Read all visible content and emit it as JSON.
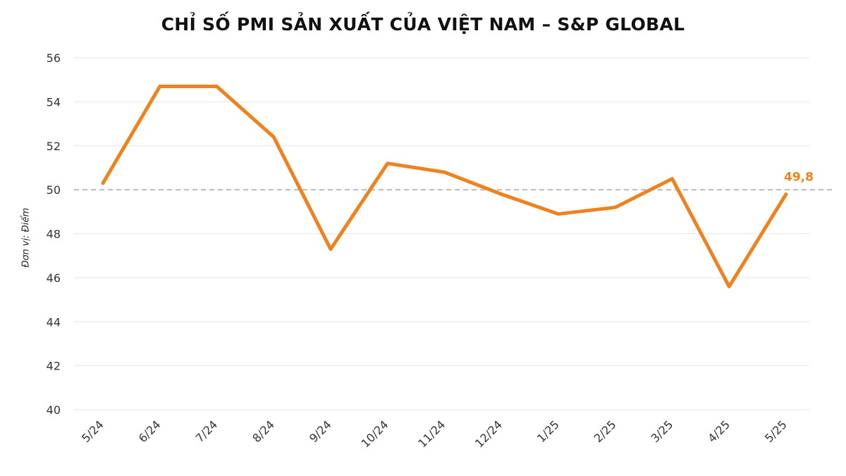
{
  "chart_data": {
    "type": "line",
    "title": "CHỈ SỐ PMI SẢN XUẤT CỦA VIỆT NAM – S&P GLOBAL",
    "ylabel": "Đơn vị: Điểm",
    "xlabel": "",
    "categories": [
      "5/24",
      "6/24",
      "7/24",
      "8/24",
      "9/24",
      "10/24",
      "11/24",
      "12/24",
      "1/25",
      "2/25",
      "3/25",
      "4/25",
      "5/25"
    ],
    "series": [
      {
        "values": [
          50.3,
          54.7,
          54.7,
          52.4,
          47.3,
          51.2,
          50.8,
          49.8,
          48.9,
          49.2,
          50.5,
          45.6,
          49.8
        ],
        "color": "#F0821E"
      }
    ],
    "ylim": [
      40,
      56
    ],
    "yticks": [
      "40",
      "42",
      "44",
      "46",
      "48",
      "50",
      "52",
      "54",
      "56"
    ],
    "reference_line": {
      "value": 50,
      "style": "dashed",
      "color": "#B9B9C3"
    },
    "data_labels": [
      {
        "index": 12,
        "text": "49,8",
        "color": "#F0821E"
      }
    ],
    "grid": true,
    "legend": "none"
  }
}
